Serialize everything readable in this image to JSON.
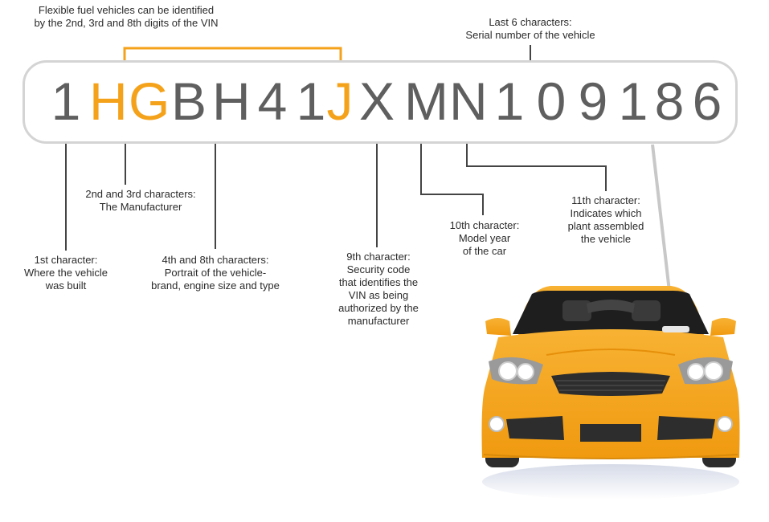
{
  "vin": {
    "characters": [
      "1",
      "H",
      "G",
      "B",
      "H",
      "4",
      "1",
      "J",
      "X",
      "M",
      "N",
      "1",
      "0",
      "9",
      "1",
      "8",
      "6"
    ],
    "highlighted_indices": [
      1,
      2,
      7
    ]
  },
  "labels": {
    "flex_fuel": [
      "Flexible fuel vehicles can be identified",
      "by the 2nd, 3rd and 8th digits of the VIN"
    ],
    "last6": [
      "Last 6 characters:",
      "Serial number of the vehicle"
    ],
    "char1": [
      "1st character:",
      "Where the vehicle",
      "was built"
    ],
    "char23": [
      "2nd and 3rd characters:",
      "The Manufacturer"
    ],
    "char48": [
      "4th and 8th characters:",
      "Portrait of the vehicle-",
      "brand, engine size and type"
    ],
    "char9": [
      "9th character:",
      "Security code",
      "that identifies the",
      "VIN as being",
      "authorized by the",
      "manufacturer"
    ],
    "char10": [
      "10th character:",
      "Model year",
      "of the car"
    ],
    "char11": [
      "11th character:",
      "Indicates which",
      "plant  assembled",
      "the vehicle"
    ]
  },
  "colors": {
    "highlight": "#f5a21b",
    "char": "#5f5f5f",
    "bracket": "#555555",
    "car_body": "#f5a21b",
    "box_border": "#d4d4d4"
  },
  "illustration": {
    "icon": "car-front-icon"
  }
}
